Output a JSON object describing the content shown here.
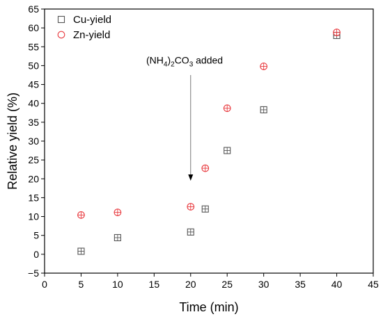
{
  "chart_data": {
    "type": "scatter",
    "xlabel": "Time (min)",
    "ylabel": "Relative yield (%)",
    "xlim": [
      0,
      45
    ],
    "ylim": [
      -5,
      65
    ],
    "xticks": [
      0,
      5,
      10,
      15,
      20,
      25,
      30,
      35,
      40,
      45
    ],
    "yticks": [
      -5,
      0,
      5,
      10,
      15,
      20,
      25,
      30,
      35,
      40,
      45,
      50,
      55,
      60,
      65
    ],
    "grid": false,
    "legend_position": "top-left",
    "series": [
      {
        "name": "Cu-yield",
        "marker": "square",
        "color": "#555555",
        "points": [
          {
            "x": 5,
            "y": 0.8
          },
          {
            "x": 10,
            "y": 4.4
          },
          {
            "x": 20,
            "y": 5.9
          },
          {
            "x": 22,
            "y": 12.0
          },
          {
            "x": 25,
            "y": 27.5
          },
          {
            "x": 30,
            "y": 38.3
          },
          {
            "x": 40,
            "y": 58.0
          }
        ]
      },
      {
        "name": "Zn-yield",
        "marker": "circle",
        "color": "#e8383d",
        "points": [
          {
            "x": 5,
            "y": 10.4
          },
          {
            "x": 10,
            "y": 11.1
          },
          {
            "x": 20,
            "y": 12.6
          },
          {
            "x": 22,
            "y": 22.8
          },
          {
            "x": 25,
            "y": 38.7
          },
          {
            "x": 30,
            "y": 49.8
          },
          {
            "x": 40,
            "y": 58.8
          }
        ]
      }
    ],
    "annotation": {
      "parts": [
        {
          "text": "(NH"
        },
        {
          "text": "4",
          "sub": true
        },
        {
          "text": ")"
        },
        {
          "text": "2",
          "sub": true
        },
        {
          "text": "CO"
        },
        {
          "text": "3",
          "sub": true
        },
        {
          "text": " added"
        }
      ],
      "arrow_x": 20,
      "arrow_y_from": 47.5,
      "arrow_y_to": 19.5
    }
  }
}
